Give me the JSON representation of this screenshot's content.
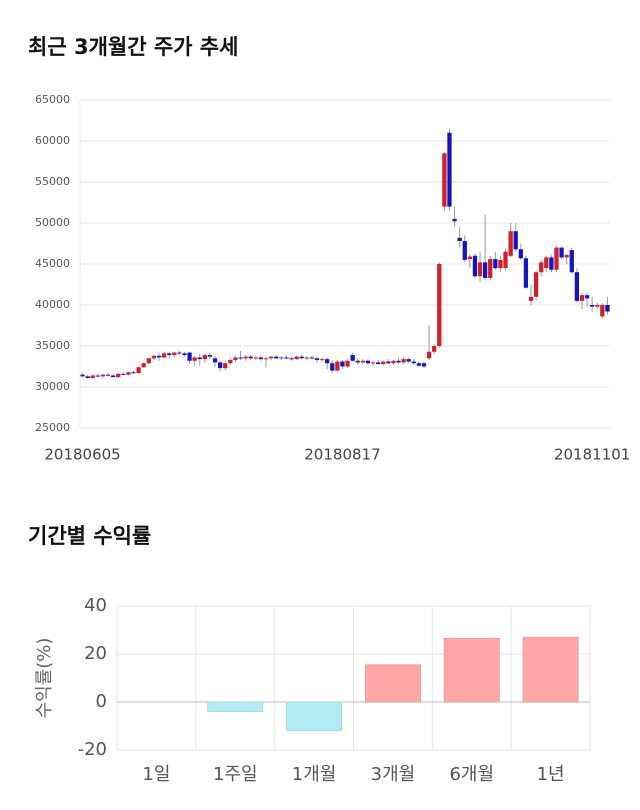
{
  "chart_data": [
    {
      "type": "candlestick",
      "title": "최근 3개월간 주가 추세",
      "categories": [
        "20180605",
        null,
        null,
        null,
        null,
        null,
        null,
        null,
        null,
        null,
        null,
        null,
        null,
        null,
        null,
        null,
        null,
        null,
        null,
        null,
        null,
        null,
        null,
        null,
        null,
        null,
        null,
        null,
        null,
        null,
        null,
        null,
        null,
        null,
        null,
        null,
        null,
        null,
        null,
        null,
        null,
        null,
        null,
        null,
        null,
        null,
        null,
        null,
        null,
        null,
        null,
        "20180817",
        null,
        null,
        null,
        null,
        null,
        null,
        null,
        null,
        null,
        null,
        null,
        null,
        null,
        null,
        null,
        null,
        null,
        null,
        null,
        null,
        null,
        null,
        null,
        null,
        null,
        null,
        null,
        null,
        null,
        null,
        null,
        null,
        null,
        null,
        null,
        null,
        null,
        null,
        null,
        null,
        null,
        null,
        null,
        null,
        null,
        null,
        null,
        null,
        "20181101",
        null,
        null,
        null
      ],
      "open": [
        31500,
        31300,
        31100,
        31400,
        31300,
        31500,
        31400,
        31200,
        31600,
        31500,
        31800,
        31700,
        32400,
        32900,
        33500,
        33800,
        33600,
        34100,
        33900,
        34200,
        34100,
        34200,
        33200,
        33600,
        33400,
        33900,
        33500,
        33000,
        32300,
        32900,
        33300,
        33600,
        33500,
        33700,
        33500,
        33600,
        33400,
        33500,
        33700,
        33500,
        33600,
        33500,
        33400,
        33700,
        33500,
        33600,
        33500,
        33300,
        33400,
        32900,
        32000,
        33100,
        32500,
        33900,
        33200,
        33000,
        33200,
        32900,
        33000,
        32800,
        33100,
        32900,
        33200,
        33000,
        33400,
        33100,
        32900,
        32900,
        33500,
        34300,
        35000,
        52000,
        61000,
        50500,
        48200,
        47800,
        45600,
        46000,
        43500,
        45200,
        43300,
        45600,
        44500,
        44500,
        46000,
        49000,
        46800,
        45700,
        40500,
        41000,
        44000,
        44500,
        45800,
        44300,
        47000,
        45800,
        46700,
        44000,
        40500,
        41200,
        40000,
        39800,
        38600,
        40000
      ],
      "high": [
        31700,
        31500,
        31500,
        31600,
        31600,
        31700,
        31600,
        31700,
        31800,
        31900,
        32000,
        32500,
        33000,
        33600,
        34000,
        34200,
        34300,
        34300,
        34300,
        34400,
        34300,
        34300,
        33800,
        34000,
        34000,
        34200,
        33800,
        33200,
        33100,
        33500,
        33800,
        34400,
        33900,
        33900,
        33800,
        33900,
        33700,
        33800,
        33900,
        33800,
        33900,
        33700,
        33800,
        33900,
        33800,
        33800,
        33700,
        33600,
        33600,
        33300,
        33300,
        33300,
        33400,
        34200,
        33500,
        33400,
        33400,
        33200,
        33300,
        33200,
        33400,
        33300,
        33500,
        33700,
        33600,
        33400,
        33100,
        33100,
        37500,
        35200,
        45200,
        58700,
        61500,
        52000,
        49500,
        48500,
        46200,
        46300,
        46500,
        51000,
        46000,
        46500,
        46000,
        46800,
        50000,
        50000,
        47500,
        46000,
        42500,
        44200,
        45500,
        46000,
        46100,
        47200,
        47100,
        46200,
        47000,
        44500,
        41500,
        41500,
        41000,
        40300,
        40200,
        41000
      ],
      "low": [
        31200,
        31000,
        31000,
        31200,
        31100,
        31300,
        31200,
        31100,
        31400,
        31400,
        31600,
        31600,
        32300,
        32700,
        33300,
        33200,
        33500,
        33500,
        33600,
        33900,
        33700,
        32800,
        32600,
        32600,
        33000,
        33400,
        32500,
        31900,
        32000,
        32700,
        33000,
        33300,
        33200,
        33300,
        33300,
        33200,
        32400,
        33300,
        33400,
        33300,
        33400,
        33200,
        33300,
        33400,
        33300,
        33400,
        33000,
        33100,
        32200,
        31700,
        31800,
        32200,
        32300,
        33100,
        32700,
        32800,
        32700,
        32600,
        32700,
        32600,
        32800,
        32700,
        32800,
        32800,
        32900,
        32700,
        32400,
        32300,
        33300,
        34000,
        34800,
        51500,
        51500,
        49500,
        47000,
        45200,
        44500,
        43200,
        42800,
        43000,
        43000,
        44300,
        44000,
        44200,
        45800,
        46500,
        45500,
        42000,
        40000,
        40600,
        43500,
        44000,
        44000,
        44000,
        45600,
        45000,
        43800,
        40300,
        39500,
        39800,
        39200,
        39500,
        38300,
        38800
      ],
      "close": [
        31300,
        31100,
        31400,
        31300,
        31500,
        31400,
        31200,
        31600,
        31500,
        31800,
        31700,
        32400,
        32900,
        33500,
        33800,
        33600,
        34100,
        33900,
        34200,
        34100,
        33900,
        33200,
        33600,
        33400,
        33900,
        33700,
        33000,
        32300,
        32900,
        33300,
        33600,
        33500,
        33700,
        33500,
        33600,
        33400,
        33500,
        33700,
        33500,
        33600,
        33500,
        33400,
        33700,
        33500,
        33600,
        33500,
        33300,
        33400,
        32900,
        32000,
        33100,
        32500,
        33200,
        33200,
        33000,
        33200,
        32900,
        33000,
        32800,
        33100,
        32900,
        33200,
        33000,
        33400,
        33100,
        32900,
        32600,
        32500,
        34300,
        35000,
        45000,
        58500,
        52000,
        50200,
        47800,
        45500,
        45900,
        43500,
        45200,
        43300,
        45600,
        44500,
        45500,
        46500,
        49000,
        46800,
        45700,
        42100,
        41000,
        44000,
        45200,
        45800,
        44300,
        47000,
        45800,
        46100,
        44000,
        40500,
        41200,
        40800,
        39800,
        40000,
        40000,
        39200
      ],
      "up_color": "#d0202a",
      "down_color": "#1515c0",
      "ylim": [
        25000,
        65000
      ],
      "yticks": [
        25000,
        30000,
        35000,
        40000,
        45000,
        50000,
        55000,
        60000,
        65000
      ],
      "grid": true
    },
    {
      "type": "bar",
      "title": "기간별 수익률",
      "y_label": "수익률(%)",
      "categories": [
        "1일",
        "1주일",
        "1개월",
        "3개월",
        "6개월",
        "1년"
      ],
      "values": [
        0,
        -4,
        -12,
        15.5,
        26.5,
        27
      ],
      "positive_color": "#ffa7a7",
      "negative_color": "#b2ebf4",
      "ylim": [
        -20,
        40
      ],
      "yticks": [
        -20,
        0,
        20,
        40
      ],
      "grid": true
    }
  ]
}
